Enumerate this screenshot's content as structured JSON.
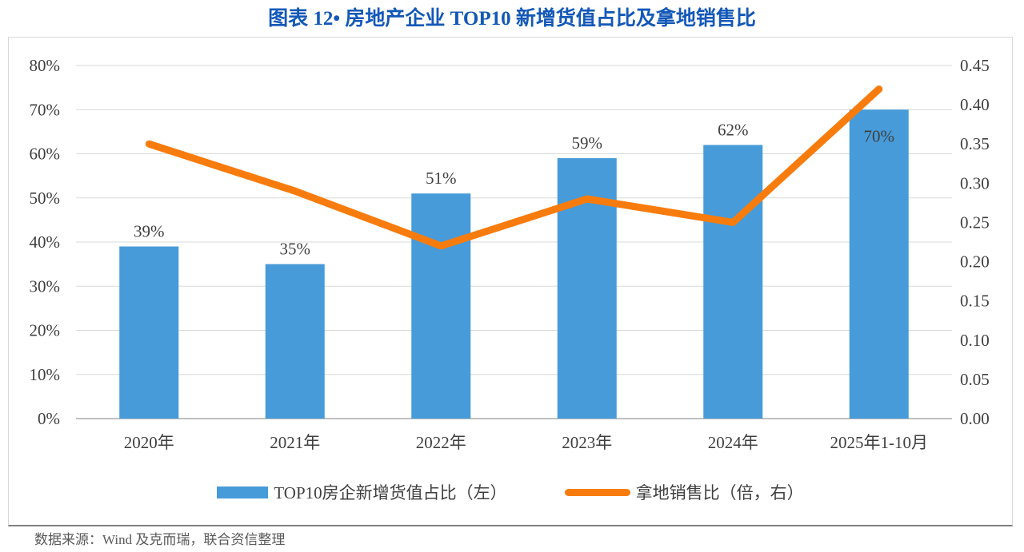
{
  "title": "图表 12• 房地产企业 TOP10 新增货值占比及拿地销售比",
  "source": "数据来源：Wind 及克而瑞，联合资信整理",
  "colors": {
    "bar": "#479BD9",
    "line": "#F87C0D",
    "title": "#1358B8",
    "grid": "#D9D9D9",
    "axis_line": "#C0C0C0",
    "text": "#3F3F3F",
    "source_text": "#595959",
    "border": "#D9D9D9",
    "rule": "#7F7F7F"
  },
  "chart_data": {
    "type": "bar+line combo",
    "title": "图表 12• 房地产企业 TOP10 新增货值占比及拿地销售比",
    "categories": [
      "2020年",
      "2021年",
      "2022年",
      "2023年",
      "2024年",
      "2025年1-10月"
    ],
    "series": [
      {
        "name": "TOP10房企新增货值占比（左）",
        "type": "bar",
        "axis": "left",
        "values": [
          39,
          35,
          51,
          59,
          62,
          70
        ],
        "data_labels": [
          "39%",
          "35%",
          "51%",
          "59%",
          "62%",
          "70%"
        ],
        "label_inside": [
          false,
          false,
          false,
          false,
          false,
          true
        ]
      },
      {
        "name": "拿地销售比（倍，右）",
        "type": "line",
        "axis": "right",
        "values": [
          0.35,
          0.29,
          0.22,
          0.28,
          0.25,
          0.42
        ]
      }
    ],
    "left_axis": {
      "min": 0,
      "max": 80,
      "ticks": [
        "80%",
        "70%",
        "60%",
        "50%",
        "40%",
        "30%",
        "20%",
        "10%",
        "0%"
      ]
    },
    "right_axis": {
      "min": 0,
      "max": 0.45,
      "ticks": [
        "0.45",
        "0.40",
        "0.35",
        "0.30",
        "0.25",
        "0.20",
        "0.15",
        "0.10",
        "0.05",
        "0.00"
      ]
    },
    "legend": [
      "TOP10房企新增货值占比（左）",
      "拿地销售比（倍，右）"
    ],
    "grid": "horizontal",
    "legend_position": "bottom"
  }
}
